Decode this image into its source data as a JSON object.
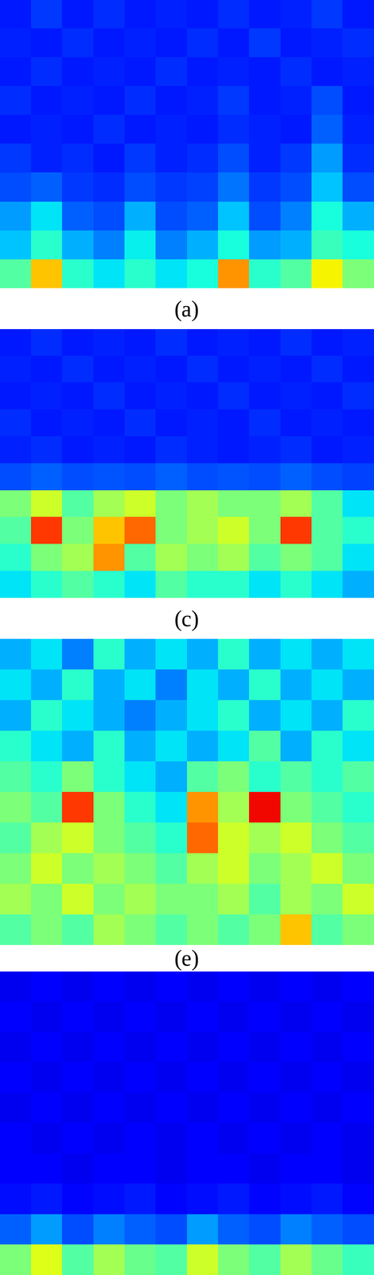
{
  "chart_data": [
    {
      "type": "heatmap",
      "title": "(a)",
      "color": "jet",
      "color_range": [
        0,
        1
      ],
      "tick_labels": false,
      "cells": [
        [
          0.15,
          0.18,
          0.15,
          0.17,
          0.15,
          0.16,
          0.15,
          0.17,
          0.15,
          0.16,
          0.18,
          0.15
        ],
        [
          0.16,
          0.15,
          0.17,
          0.15,
          0.16,
          0.15,
          0.17,
          0.15,
          0.18,
          0.15,
          0.16,
          0.17
        ],
        [
          0.15,
          0.17,
          0.15,
          0.16,
          0.15,
          0.17,
          0.15,
          0.16,
          0.15,
          0.17,
          0.15,
          0.16
        ],
        [
          0.17,
          0.15,
          0.16,
          0.15,
          0.17,
          0.15,
          0.16,
          0.18,
          0.15,
          0.16,
          0.2,
          0.15
        ],
        [
          0.15,
          0.16,
          0.15,
          0.17,
          0.15,
          0.16,
          0.15,
          0.17,
          0.16,
          0.15,
          0.22,
          0.16
        ],
        [
          0.18,
          0.16,
          0.17,
          0.15,
          0.18,
          0.16,
          0.17,
          0.2,
          0.16,
          0.18,
          0.28,
          0.17
        ],
        [
          0.2,
          0.22,
          0.18,
          0.17,
          0.2,
          0.18,
          0.19,
          0.24,
          0.18,
          0.2,
          0.32,
          0.2
        ],
        [
          0.28,
          0.35,
          0.22,
          0.2,
          0.3,
          0.2,
          0.22,
          0.32,
          0.2,
          0.25,
          0.38,
          0.3
        ],
        [
          0.32,
          0.4,
          0.3,
          0.25,
          0.36,
          0.25,
          0.3,
          0.38,
          0.28,
          0.3,
          0.42,
          0.38
        ],
        [
          0.45,
          0.7,
          0.4,
          0.35,
          0.4,
          0.35,
          0.38,
          0.75,
          0.4,
          0.45,
          0.65,
          0.5
        ]
      ]
    },
    {
      "type": "heatmap",
      "title": "(c)",
      "color": "jet",
      "color_range": [
        0,
        1
      ],
      "tick_labels": false,
      "cells": [
        [
          0.15,
          0.17,
          0.15,
          0.16,
          0.15,
          0.17,
          0.15,
          0.16,
          0.15,
          0.17,
          0.15,
          0.16
        ],
        [
          0.16,
          0.15,
          0.17,
          0.15,
          0.16,
          0.15,
          0.17,
          0.15,
          0.16,
          0.15,
          0.17,
          0.15
        ],
        [
          0.15,
          0.16,
          0.15,
          0.17,
          0.15,
          0.16,
          0.15,
          0.17,
          0.15,
          0.16,
          0.15,
          0.17
        ],
        [
          0.17,
          0.15,
          0.16,
          0.15,
          0.17,
          0.15,
          0.16,
          0.15,
          0.17,
          0.15,
          0.16,
          0.15
        ],
        [
          0.16,
          0.17,
          0.15,
          0.16,
          0.15,
          0.17,
          0.16,
          0.15,
          0.16,
          0.17,
          0.15,
          0.16
        ],
        [
          0.2,
          0.22,
          0.2,
          0.21,
          0.2,
          0.22,
          0.2,
          0.21,
          0.2,
          0.22,
          0.2,
          0.19
        ],
        [
          0.5,
          0.6,
          0.45,
          0.55,
          0.6,
          0.5,
          0.55,
          0.5,
          0.5,
          0.55,
          0.45,
          0.35
        ],
        [
          0.45,
          0.85,
          0.5,
          0.7,
          0.8,
          0.5,
          0.55,
          0.6,
          0.5,
          0.85,
          0.45,
          0.4
        ],
        [
          0.4,
          0.5,
          0.55,
          0.75,
          0.45,
          0.55,
          0.5,
          0.55,
          0.45,
          0.5,
          0.45,
          0.35
        ],
        [
          0.35,
          0.4,
          0.45,
          0.4,
          0.35,
          0.45,
          0.4,
          0.4,
          0.35,
          0.4,
          0.35,
          0.3
        ]
      ]
    },
    {
      "type": "heatmap",
      "title": "(e)",
      "color": "jet",
      "color_range": [
        0,
        1
      ],
      "tick_labels": false,
      "cells": [
        [
          0.3,
          0.35,
          0.25,
          0.4,
          0.3,
          0.35,
          0.3,
          0.4,
          0.3,
          0.35,
          0.3,
          0.35
        ],
        [
          0.35,
          0.3,
          0.4,
          0.3,
          0.35,
          0.25,
          0.35,
          0.3,
          0.4,
          0.3,
          0.35,
          0.3
        ],
        [
          0.3,
          0.4,
          0.35,
          0.3,
          0.25,
          0.3,
          0.35,
          0.4,
          0.3,
          0.35,
          0.3,
          0.4
        ],
        [
          0.4,
          0.35,
          0.3,
          0.4,
          0.3,
          0.35,
          0.3,
          0.35,
          0.45,
          0.3,
          0.4,
          0.35
        ],
        [
          0.45,
          0.4,
          0.5,
          0.4,
          0.35,
          0.3,
          0.45,
          0.5,
          0.4,
          0.45,
          0.4,
          0.45
        ],
        [
          0.5,
          0.45,
          0.85,
          0.5,
          0.4,
          0.35,
          0.75,
          0.55,
          0.9,
          0.5,
          0.45,
          0.4
        ],
        [
          0.45,
          0.55,
          0.6,
          0.5,
          0.45,
          0.4,
          0.8,
          0.6,
          0.55,
          0.6,
          0.5,
          0.45
        ],
        [
          0.5,
          0.6,
          0.5,
          0.55,
          0.5,
          0.45,
          0.55,
          0.6,
          0.5,
          0.55,
          0.6,
          0.5
        ],
        [
          0.55,
          0.5,
          0.6,
          0.5,
          0.55,
          0.5,
          0.5,
          0.55,
          0.45,
          0.55,
          0.5,
          0.6
        ],
        [
          0.45,
          0.5,
          0.45,
          0.55,
          0.5,
          0.45,
          0.5,
          0.45,
          0.5,
          0.7,
          0.45,
          0.5
        ]
      ]
    },
    {
      "type": "heatmap",
      "color": "jet",
      "color_range": [
        0,
        1
      ],
      "tick_labels": false,
      "cells": [
        [
          0.1,
          0.11,
          0.1,
          0.12,
          0.1,
          0.11,
          0.1,
          0.12,
          0.1,
          0.11,
          0.1,
          0.12
        ],
        [
          0.11,
          0.1,
          0.12,
          0.1,
          0.11,
          0.1,
          0.12,
          0.1,
          0.11,
          0.1,
          0.12,
          0.1
        ],
        [
          0.1,
          0.12,
          0.1,
          0.11,
          0.1,
          0.12,
          0.1,
          0.11,
          0.1,
          0.12,
          0.1,
          0.11
        ],
        [
          0.12,
          0.1,
          0.11,
          0.1,
          0.12,
          0.1,
          0.11,
          0.1,
          0.12,
          0.1,
          0.11,
          0.1
        ],
        [
          0.1,
          0.11,
          0.1,
          0.12,
          0.1,
          0.11,
          0.1,
          0.12,
          0.1,
          0.11,
          0.1,
          0.12
        ],
        [
          0.11,
          0.1,
          0.12,
          0.1,
          0.11,
          0.1,
          0.12,
          0.1,
          0.11,
          0.1,
          0.12,
          0.1
        ],
        [
          0.12,
          0.11,
          0.1,
          0.12,
          0.11,
          0.1,
          0.12,
          0.11,
          0.1,
          0.12,
          0.11,
          0.1
        ],
        [
          0.14,
          0.15,
          0.13,
          0.14,
          0.15,
          0.13,
          0.14,
          0.15,
          0.13,
          0.14,
          0.15,
          0.13
        ],
        [
          0.22,
          0.28,
          0.2,
          0.25,
          0.22,
          0.2,
          0.28,
          0.22,
          0.2,
          0.25,
          0.22,
          0.2
        ],
        [
          0.5,
          0.62,
          0.45,
          0.55,
          0.48,
          0.45,
          0.6,
          0.5,
          0.45,
          0.55,
          0.48,
          0.42
        ]
      ]
    }
  ]
}
